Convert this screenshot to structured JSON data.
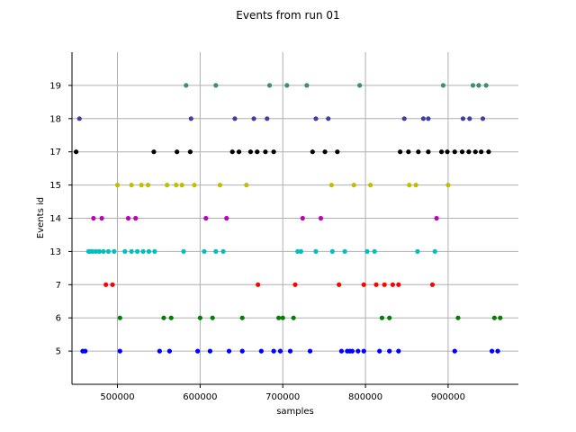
{
  "chart_data": {
    "type": "scatter",
    "title": "Events from run 01",
    "xlabel": "samples",
    "ylabel": "Events id",
    "xlim": [
      445000,
      985000
    ],
    "xticks": [
      500000,
      600000,
      700000,
      800000,
      900000
    ],
    "xtick_labels": [
      "500000",
      "600000",
      "700000",
      "800000",
      "900000"
    ],
    "categories": [
      "5",
      "6",
      "7",
      "13",
      "14",
      "15",
      "17",
      "18",
      "19"
    ],
    "grid": true,
    "series": [
      {
        "category": "5",
        "color": "#0000ff",
        "x": [
          458000,
          461000,
          503000,
          551000,
          563000,
          597000,
          612000,
          635000,
          651000,
          674000,
          689000,
          697000,
          709000,
          733000,
          771000,
          778000,
          781000,
          784000,
          791000,
          798000,
          817000,
          829000,
          840000,
          908000,
          953000,
          960000
        ]
      },
      {
        "category": "6",
        "color": "#008000",
        "x": [
          503000,
          556000,
          565000,
          600000,
          615000,
          651000,
          695000,
          700000,
          713000,
          820000,
          829000,
          912000,
          956000,
          963000
        ]
      },
      {
        "category": "7",
        "color": "#ff0000",
        "x": [
          486000,
          494000,
          670000,
          715000,
          768000,
          798000,
          813000,
          823000,
          833000,
          840000,
          881000
        ]
      },
      {
        "category": "13",
        "color": "#00bfbf",
        "x": [
          465000,
          467000,
          470000,
          474000,
          478000,
          483000,
          489000,
          496000,
          509000,
          517000,
          524000,
          531000,
          538000,
          545000,
          580000,
          605000,
          619000,
          628000,
          718000,
          722000,
          740000,
          760000,
          775000,
          802000,
          811000,
          863000,
          884000
        ]
      },
      {
        "category": "14",
        "color": "#bf00bf",
        "x": [
          471000,
          481000,
          513000,
          522000,
          607000,
          632000,
          724000,
          746000,
          886000
        ]
      },
      {
        "category": "15",
        "color": "#bfbf00",
        "x": [
          500000,
          517000,
          529000,
          537000,
          560000,
          571000,
          578000,
          593000,
          624000,
          656000,
          759000,
          786000,
          806000,
          853000,
          861000,
          900000
        ]
      },
      {
        "category": "17",
        "color": "#000000",
        "x": [
          450000,
          544000,
          572000,
          588000,
          639000,
          647000,
          661000,
          669000,
          679000,
          689000,
          736000,
          751000,
          766000,
          842000,
          852000,
          864000,
          876000,
          892000,
          899000,
          908000,
          917000,
          925000,
          933000,
          940000,
          949000
        ]
      },
      {
        "category": "18",
        "color": "#3f3f9f",
        "x": [
          454000,
          589000,
          642000,
          665000,
          681000,
          740000,
          755000,
          847000,
          870000,
          876000,
          918000,
          926000,
          942000
        ]
      },
      {
        "category": "19",
        "color": "#3f8f6f",
        "x": [
          583000,
          619000,
          684000,
          705000,
          729000,
          793000,
          894000,
          930000,
          937000,
          946000
        ]
      }
    ]
  }
}
